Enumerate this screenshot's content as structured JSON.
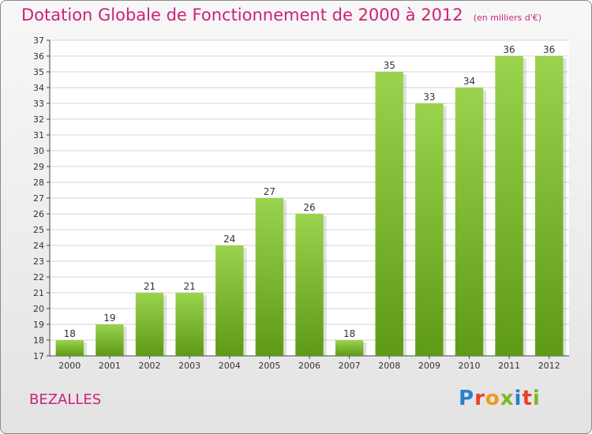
{
  "title": {
    "main": "Dotation Globale de Fonctionnement de 2000 à 2012",
    "unit": "(en milliers d'€)"
  },
  "commune": "BEZALLES",
  "logo": {
    "letters": [
      {
        "ch": "P",
        "color": "#2a7fd0"
      },
      {
        "ch": "r",
        "color": "#e8402b"
      },
      {
        "ch": "o",
        "color": "#f29b1b"
      },
      {
        "ch": "x",
        "color": "#7ab82a"
      },
      {
        "ch": "i",
        "color": "#2a7fd0"
      },
      {
        "ch": "t",
        "color": "#e8402b"
      },
      {
        "ch": "i",
        "color": "#7ab82a"
      }
    ]
  },
  "colors": {
    "accent": "#cc2277",
    "bar_top": "#9ad34e",
    "bar_bottom": "#5e9a16",
    "grid": "#d6d6d6",
    "axis_text": "#333333"
  },
  "chart_data": {
    "type": "bar",
    "categories": [
      "2000",
      "2001",
      "2002",
      "2003",
      "2004",
      "2005",
      "2006",
      "2007",
      "2008",
      "2009",
      "2010",
      "2011",
      "2012"
    ],
    "values": [
      18,
      19,
      21,
      21,
      24,
      27,
      26,
      18,
      35,
      33,
      34,
      36,
      36
    ],
    "ylim": [
      17,
      37
    ],
    "yticks": [
      17,
      18,
      19,
      20,
      21,
      22,
      23,
      24,
      25,
      26,
      27,
      28,
      29,
      30,
      31,
      32,
      33,
      34,
      35,
      36,
      37
    ],
    "grid": true
  }
}
